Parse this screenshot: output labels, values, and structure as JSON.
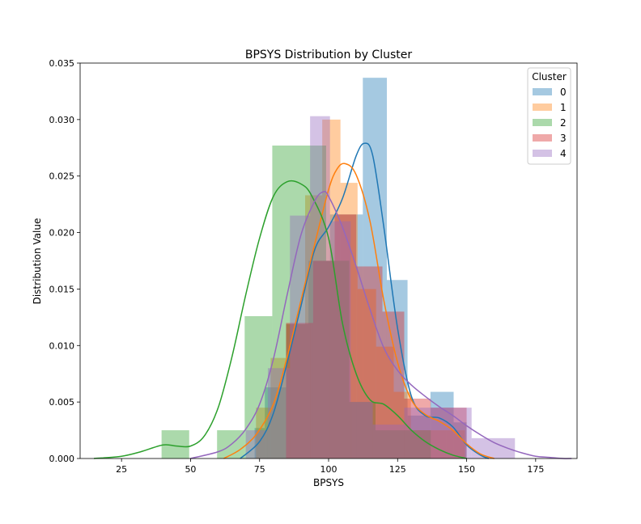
{
  "chart_data": {
    "type": "histogram",
    "title": "BPSYS Distribution by Cluster",
    "xlabel": "BPSYS",
    "ylabel": "Distribution Value",
    "xlim": [
      10,
      190
    ],
    "ylim": [
      0,
      0.035
    ],
    "xticks": [
      25,
      50,
      75,
      100,
      125,
      150,
      175
    ],
    "yticks": [
      0.0,
      0.005,
      0.01,
      0.015,
      0.02,
      0.025,
      0.03,
      0.035
    ],
    "ytick_labels": [
      "0.000",
      "0.005",
      "0.010",
      "0.015",
      "0.020",
      "0.025",
      "0.030",
      "0.035"
    ],
    "grid": false,
    "legend": {
      "title": "Cluster",
      "placement": "top-right"
    },
    "series": [
      {
        "name": "0",
        "color": "#1f77b4",
        "bars": [
          {
            "x0": 73.2,
            "x1": 76.9,
            "height": 0.0027
          },
          {
            "x0": 76.9,
            "x1": 84.6,
            "height": 0.0063
          },
          {
            "x0": 84.6,
            "x1": 92.7,
            "height": 0.0119
          },
          {
            "x0": 92.7,
            "x1": 100.5,
            "height": 0.0175
          },
          {
            "x0": 100.5,
            "x1": 112.4,
            "height": 0.0216
          },
          {
            "x0": 112.4,
            "x1": 121.1,
            "height": 0.0337
          },
          {
            "x0": 121.1,
            "x1": 128.6,
            "height": 0.0158
          },
          {
            "x0": 128.6,
            "x1": 136.9,
            "height": 0.0038
          },
          {
            "x0": 136.9,
            "x1": 145.3,
            "height": 0.0059
          },
          {
            "x0": 145.3,
            "x1": 150.0,
            "height": 0.0032
          }
        ],
        "kde_x": [
          68,
          75,
          80,
          85,
          90,
          95,
          100,
          105,
          110,
          113,
          116,
          120,
          125,
          130,
          135,
          140,
          145,
          150,
          155,
          158
        ],
        "kde_y": [
          0.0,
          0.0015,
          0.004,
          0.0085,
          0.0135,
          0.0185,
          0.0205,
          0.023,
          0.0268,
          0.0279,
          0.0268,
          0.0205,
          0.0115,
          0.0055,
          0.0038,
          0.0036,
          0.0028,
          0.0012,
          0.0003,
          0.0
        ]
      },
      {
        "name": "1",
        "color": "#ff7f0e",
        "bars": [
          {
            "x0": 73.7,
            "x1": 79.0,
            "height": 0.0045
          },
          {
            "x0": 79.0,
            "x1": 84.6,
            "height": 0.0089
          },
          {
            "x0": 84.6,
            "x1": 91.5,
            "height": 0.0119
          },
          {
            "x0": 91.5,
            "x1": 97.7,
            "height": 0.0233
          },
          {
            "x0": 97.7,
            "x1": 104.3,
            "height": 0.03
          },
          {
            "x0": 104.3,
            "x1": 110.5,
            "height": 0.0244
          },
          {
            "x0": 110.5,
            "x1": 117.2,
            "height": 0.015
          },
          {
            "x0": 117.2,
            "x1": 123.6,
            "height": 0.0099
          },
          {
            "x0": 123.6,
            "x1": 129.8,
            "height": 0.0059
          },
          {
            "x0": 129.8,
            "x1": 137.0,
            "height": 0.0025
          },
          {
            "x0": 137.0,
            "x1": 142.8,
            "height": 0.0025
          },
          {
            "x0": 142.8,
            "x1": 149.4,
            "height": 0.0025
          }
        ],
        "kde_x": [
          62,
          68,
          74,
          80,
          85,
          90,
          95,
          100,
          103,
          106,
          110,
          115,
          120,
          125,
          130,
          135,
          140,
          145,
          150,
          155,
          160
        ],
        "kde_y": [
          0.0,
          0.0008,
          0.0022,
          0.0048,
          0.009,
          0.014,
          0.019,
          0.0238,
          0.0256,
          0.0261,
          0.0251,
          0.021,
          0.014,
          0.0085,
          0.0052,
          0.0039,
          0.0033,
          0.0025,
          0.0013,
          0.0004,
          0.0
        ]
      },
      {
        "name": "2",
        "color": "#2ca02c",
        "bars": [
          {
            "x0": 39.5,
            "x1": 49.5,
            "height": 0.0025
          },
          {
            "x0": 59.6,
            "x1": 69.6,
            "height": 0.0025
          },
          {
            "x0": 69.6,
            "x1": 79.6,
            "height": 0.0126
          },
          {
            "x0": 79.6,
            "x1": 99.1,
            "height": 0.0277
          },
          {
            "x0": 99.1,
            "x1": 107.5,
            "height": 0.0175
          },
          {
            "x0": 107.5,
            "x1": 117.0,
            "height": 0.005
          },
          {
            "x0": 117.0,
            "x1": 137.0,
            "height": 0.0025
          }
        ],
        "kde_x": [
          15,
          25,
          32,
          40,
          45,
          50,
          55,
          60,
          65,
          70,
          75,
          80,
          85,
          90,
          94,
          100,
          105,
          110,
          115,
          120,
          125,
          130,
          135,
          140,
          145,
          150
        ],
        "kde_y": [
          0.0,
          0.0002,
          0.0006,
          0.0012,
          0.0011,
          0.0011,
          0.002,
          0.0045,
          0.009,
          0.0145,
          0.0195,
          0.0232,
          0.0245,
          0.0243,
          0.0232,
          0.0195,
          0.012,
          0.0075,
          0.0052,
          0.0048,
          0.0038,
          0.0025,
          0.0015,
          0.0008,
          0.0003,
          0.0
        ]
      },
      {
        "name": "3",
        "color": "#d62728",
        "bars": [
          {
            "x0": 84.6,
            "x1": 94.4,
            "height": 0.012
          },
          {
            "x0": 94.4,
            "x1": 102.2,
            "height": 0.0175
          },
          {
            "x0": 102.2,
            "x1": 110.0,
            "height": 0.0216
          },
          {
            "x0": 110.0,
            "x1": 119.5,
            "height": 0.017
          },
          {
            "x0": 119.5,
            "x1": 127.4,
            "height": 0.013
          },
          {
            "x0": 127.4,
            "x1": 137.0,
            "height": 0.0053
          },
          {
            "x0": 137.0,
            "x1": 150.0,
            "height": 0.0045
          }
        ],
        "kde_x": [],
        "kde_y": []
      },
      {
        "name": "4",
        "color": "#9467bd",
        "bars": [
          {
            "x0": 70.0,
            "x1": 78.0,
            "height": 0.0025
          },
          {
            "x0": 78.0,
            "x1": 86.0,
            "height": 0.008
          },
          {
            "x0": 86.0,
            "x1": 93.3,
            "height": 0.0215
          },
          {
            "x0": 93.3,
            "x1": 100.5,
            "height": 0.0303
          },
          {
            "x0": 100.5,
            "x1": 108.0,
            "height": 0.021
          },
          {
            "x0": 108.0,
            "x1": 116.0,
            "height": 0.005
          },
          {
            "x0": 116.0,
            "x1": 127.4,
            "height": 0.003
          },
          {
            "x0": 127.4,
            "x1": 137.0,
            "height": 0.0045
          },
          {
            "x0": 137.0,
            "x1": 151.8,
            "height": 0.0045
          },
          {
            "x0": 151.8,
            "x1": 167.5,
            "height": 0.0018
          }
        ],
        "kde_x": [
          50,
          60,
          65,
          70,
          75,
          80,
          85,
          90,
          95,
          98,
          100,
          105,
          110,
          115,
          120,
          125,
          130,
          135,
          140,
          145,
          150,
          155,
          160,
          165,
          170,
          175,
          180,
          185,
          188
        ],
        "kde_y": [
          0.0,
          0.0006,
          0.0013,
          0.0026,
          0.0048,
          0.0088,
          0.0145,
          0.0198,
          0.0228,
          0.0236,
          0.0232,
          0.0205,
          0.017,
          0.0132,
          0.0098,
          0.0078,
          0.0065,
          0.0055,
          0.0046,
          0.0038,
          0.0029,
          0.0021,
          0.0014,
          0.0009,
          0.0005,
          0.0002,
          0.0001,
          0.0,
          0.0
        ]
      }
    ]
  }
}
